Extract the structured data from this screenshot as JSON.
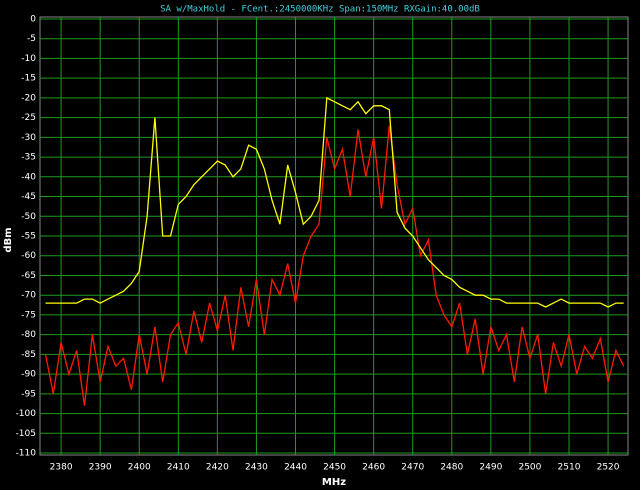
{
  "chart_data": {
    "type": "line",
    "title": "SA w/MaxHold - FCent.:2450000KHz Span:150MHz RXGain:40.00dB",
    "x_label": "MHz",
    "y_label": "dBm",
    "xlim": [
      2374.6,
      2525.1
    ],
    "ylim": [
      -110.5,
      0.5
    ],
    "xticks": [
      2380,
      2390,
      2400,
      2410,
      2420,
      2430,
      2440,
      2450,
      2460,
      2470,
      2480,
      2490,
      2500,
      2510,
      2520
    ],
    "yticks": [
      0,
      -5,
      -10,
      -15,
      -20,
      -25,
      -30,
      -35,
      -40,
      -45,
      -50,
      -55,
      -60,
      -65,
      -70,
      -75,
      -80,
      -85,
      -90,
      -95,
      -100,
      -105,
      -110
    ],
    "grid": true,
    "grid_color": "#1f9a1f",
    "x": [
      2376,
      2378,
      2380,
      2382,
      2384,
      2386,
      2388,
      2390,
      2392,
      2394,
      2396,
      2398,
      2400,
      2402,
      2404,
      2406,
      2408,
      2410,
      2412,
      2414,
      2416,
      2418,
      2420,
      2422,
      2424,
      2426,
      2428,
      2430,
      2432,
      2434,
      2436,
      2438,
      2440,
      2442,
      2444,
      2446,
      2448,
      2450,
      2452,
      2454,
      2456,
      2458,
      2460,
      2462,
      2464,
      2466,
      2468,
      2470,
      2472,
      2474,
      2476,
      2478,
      2480,
      2482,
      2484,
      2486,
      2488,
      2490,
      2492,
      2494,
      2496,
      2498,
      2500,
      2502,
      2504,
      2506,
      2508,
      2510,
      2512,
      2514,
      2516,
      2518,
      2520,
      2522,
      2524
    ],
    "series": [
      {
        "color": "#ff1a00",
        "values": [
          -85,
          -95,
          -82,
          -90,
          -84,
          -98,
          -80,
          -92,
          -83,
          -88,
          -86,
          -94,
          -80,
          -90,
          -78,
          -92,
          -80,
          -77,
          -85,
          -74,
          -82,
          -72,
          -79,
          -70,
          -84,
          -68,
          -78,
          -66,
          -80,
          -66,
          -70,
          -62,
          -72,
          -60,
          -55,
          -52,
          -30,
          -38,
          -33,
          -45,
          -28,
          -40,
          -30,
          -48,
          -27,
          -42,
          -52,
          -48,
          -60,
          -56,
          -70,
          -75,
          -78,
          -72,
          -85,
          -76,
          -90,
          -78,
          -84,
          -80,
          -92,
          -78,
          -86,
          -80,
          -95,
          -82,
          -88,
          -80,
          -90,
          -83,
          -86,
          -81,
          -92,
          -84,
          -88
        ]
      },
      {
        "color": "#ffff00",
        "values": [
          -72,
          -72,
          -72,
          -72,
          -72,
          -71,
          -71,
          -72,
          -71,
          -70,
          -69,
          -67,
          -64,
          -50,
          -25,
          -55,
          -55,
          -47,
          -45,
          -42,
          -40,
          -38,
          -36,
          -37,
          -40,
          -38,
          -32,
          -33,
          -38,
          -46,
          -52,
          -37,
          -44,
          -52,
          -50,
          -46,
          -20,
          -21,
          -22,
          -23,
          -21,
          -24,
          -22,
          -22,
          -23,
          -49,
          -53,
          -55,
          -58,
          -61,
          -63,
          -65,
          -66,
          -68,
          -69,
          -70,
          -70,
          -71,
          -71,
          -72,
          -72,
          -72,
          -72,
          -72,
          -73,
          -72,
          -71,
          -72,
          -72,
          -72,
          -72,
          -72,
          -73,
          -72,
          -72
        ]
      }
    ]
  }
}
